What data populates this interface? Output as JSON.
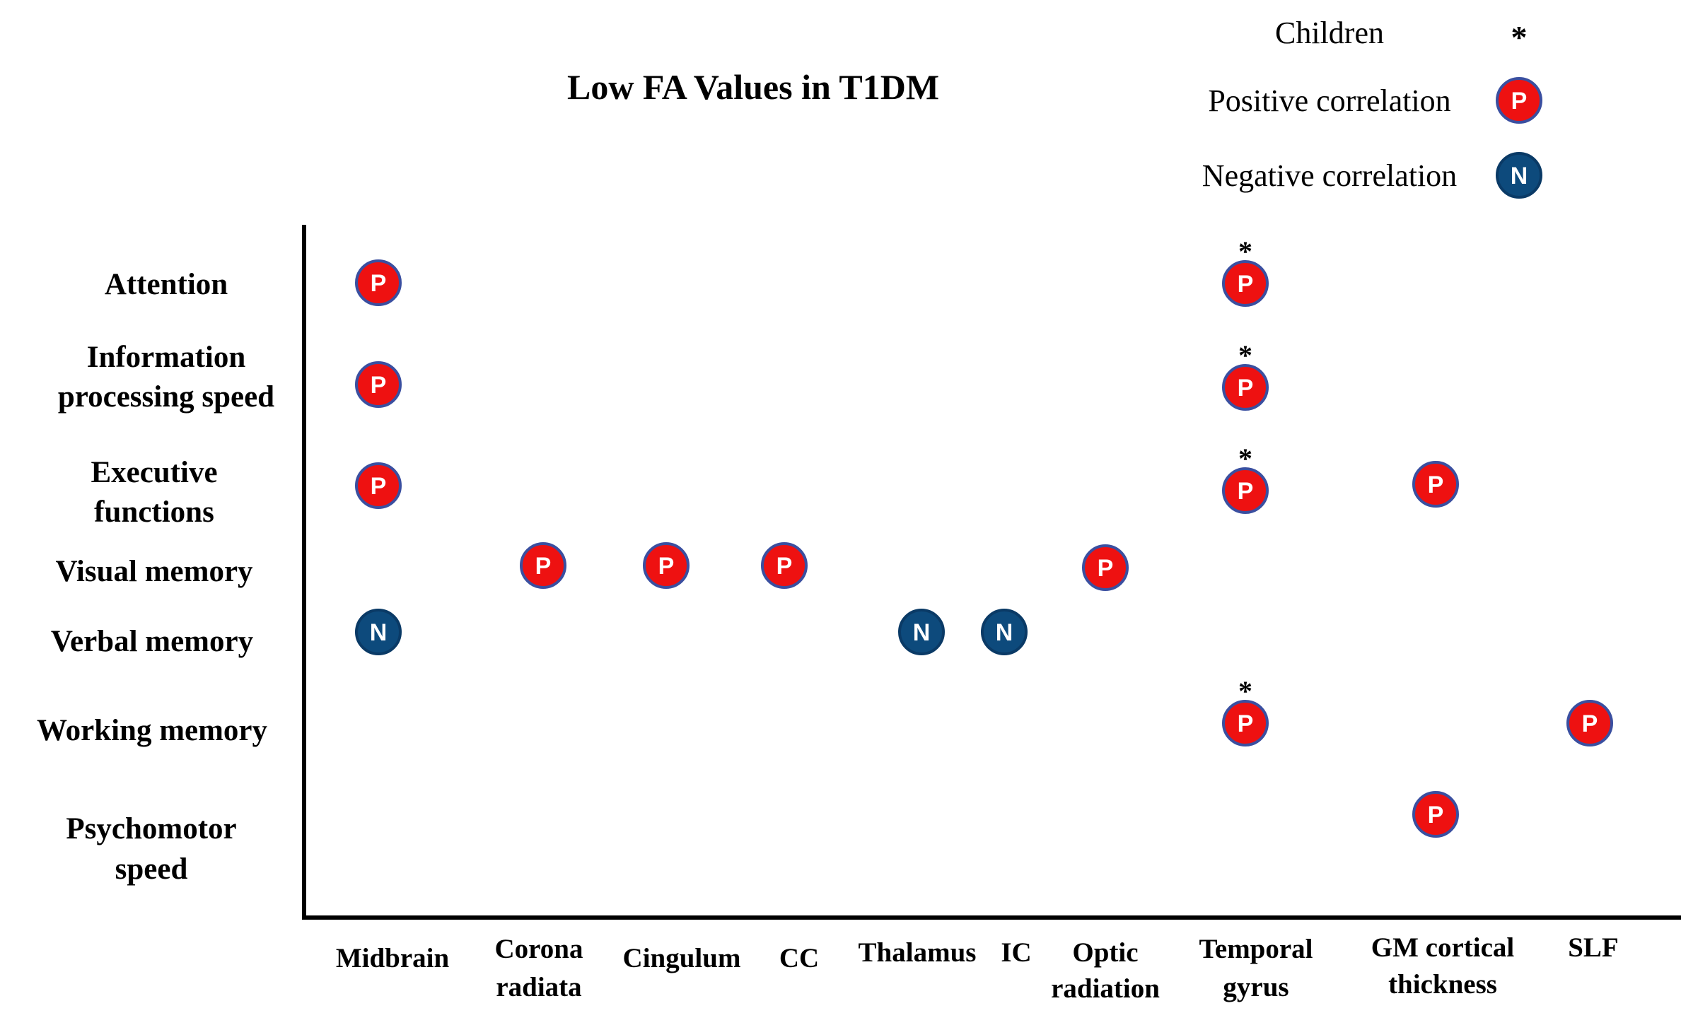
{
  "chart_data": {
    "type": "scatter",
    "title": "Low FA Values in T1DM",
    "legend": {
      "placement": "top-right",
      "entries": [
        {
          "key": "children",
          "label": "Children",
          "symbol": "*"
        },
        {
          "key": "P",
          "label": "Positive correlation",
          "symbol": "P"
        },
        {
          "key": "N",
          "label": "Negative correlation",
          "symbol": "N"
        }
      ]
    },
    "y_categories": [
      {
        "id": "attention",
        "lines": [
          "Attention"
        ]
      },
      {
        "id": "info",
        "lines": [
          "Information",
          "processing speed"
        ]
      },
      {
        "id": "exec",
        "lines": [
          "Executive",
          "functions"
        ]
      },
      {
        "id": "visual",
        "lines": [
          "Visual memory"
        ]
      },
      {
        "id": "verbal",
        "lines": [
          "Verbal memory"
        ]
      },
      {
        "id": "working",
        "lines": [
          "Working memory"
        ]
      },
      {
        "id": "psycho",
        "lines": [
          "Psychomotor",
          "speed"
        ]
      }
    ],
    "x_categories": [
      {
        "id": "midbrain",
        "lines": [
          "Midbrain"
        ]
      },
      {
        "id": "corona",
        "lines": [
          "Corona",
          "radiata"
        ]
      },
      {
        "id": "cingulum",
        "lines": [
          "Cingulum"
        ]
      },
      {
        "id": "cc",
        "lines": [
          "CC"
        ]
      },
      {
        "id": "thalamus",
        "lines": [
          "Thalamus"
        ]
      },
      {
        "id": "ic",
        "lines": [
          "IC"
        ]
      },
      {
        "id": "optic",
        "lines": [
          "Optic",
          "radiation"
        ]
      },
      {
        "id": "temporal",
        "lines": [
          "Temporal",
          "gyrus"
        ]
      },
      {
        "id": "gm",
        "lines": [
          "GM cortical",
          "thickness"
        ]
      },
      {
        "id": "slf",
        "lines": [
          "SLF"
        ]
      }
    ],
    "points": [
      {
        "x": "midbrain",
        "y": "attention",
        "type": "P",
        "children": false
      },
      {
        "x": "midbrain",
        "y": "info",
        "type": "P",
        "children": false
      },
      {
        "x": "midbrain",
        "y": "exec",
        "type": "P",
        "children": false
      },
      {
        "x": "midbrain",
        "y": "verbal",
        "type": "N",
        "children": false
      },
      {
        "x": "corona",
        "y": "visual",
        "type": "P",
        "children": false
      },
      {
        "x": "cingulum",
        "y": "visual",
        "type": "P",
        "children": false
      },
      {
        "x": "cc",
        "y": "visual",
        "type": "P",
        "children": false
      },
      {
        "x": "thalamus",
        "y": "verbal",
        "type": "N",
        "children": false
      },
      {
        "x": "ic",
        "y": "verbal",
        "type": "N",
        "children": false
      },
      {
        "x": "optic",
        "y": "visual",
        "type": "P",
        "children": false
      },
      {
        "x": "temporal",
        "y": "attention",
        "type": "P",
        "children": true
      },
      {
        "x": "temporal",
        "y": "info",
        "type": "P",
        "children": true
      },
      {
        "x": "temporal",
        "y": "exec",
        "type": "P",
        "children": true
      },
      {
        "x": "temporal",
        "y": "working",
        "type": "P",
        "children": true
      },
      {
        "x": "gm",
        "y": "exec",
        "type": "P",
        "children": false
      },
      {
        "x": "gm",
        "y": "psycho",
        "type": "P",
        "children": false
      },
      {
        "x": "slf",
        "y": "working",
        "type": "P",
        "children": false
      }
    ],
    "colors": {
      "positive_fill": "#ee1111",
      "positive_stroke": "#3a4fa0",
      "negative_fill": "#0d4a7c",
      "negative_stroke": "#0a3a66",
      "marker_text": "#ffffff",
      "axis": "#000000",
      "text": "#000000"
    }
  }
}
